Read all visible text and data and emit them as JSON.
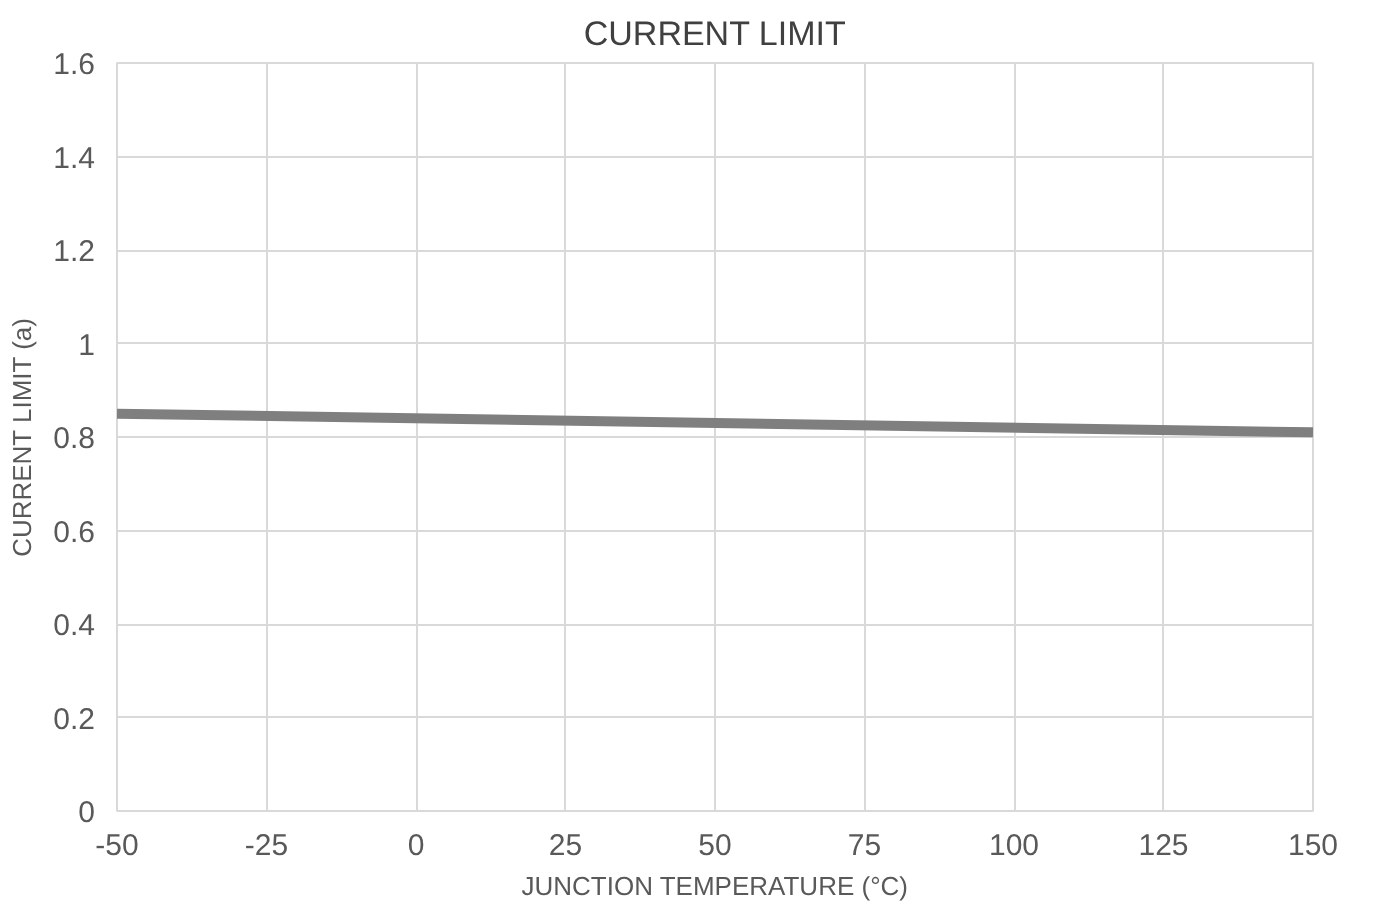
{
  "chart_data": {
    "type": "line",
    "title": "CURRENT LIMIT",
    "xlabel": "JUNCTION TEMPERATURE (°C)",
    "ylabel": "CURRENT LIMIT (a)",
    "x": [
      -50,
      150
    ],
    "series": [
      {
        "color": "#7f7f7f",
        "values": [
          0.85,
          0.81
        ]
      }
    ],
    "xlim": [
      -50,
      150
    ],
    "xticks": [
      -50,
      -25,
      0,
      25,
      50,
      75,
      100,
      125,
      150
    ],
    "ylim": [
      0,
      1.6
    ],
    "yticks": [
      0,
      {
        "value": 0.2,
        "label": "0.2"
      },
      {
        "value": 0.4,
        "label": "0.4"
      },
      {
        "value": 0.6,
        "label": "0.6"
      },
      {
        "value": 0.8,
        "label": "0.8"
      },
      1,
      {
        "value": 1.2,
        "label": "1.2"
      },
      {
        "value": 1.4,
        "label": "1.4"
      },
      {
        "value": 1.6,
        "label": "1.6"
      }
    ],
    "grid": true,
    "marker": "none",
    "line_style": "solid"
  }
}
